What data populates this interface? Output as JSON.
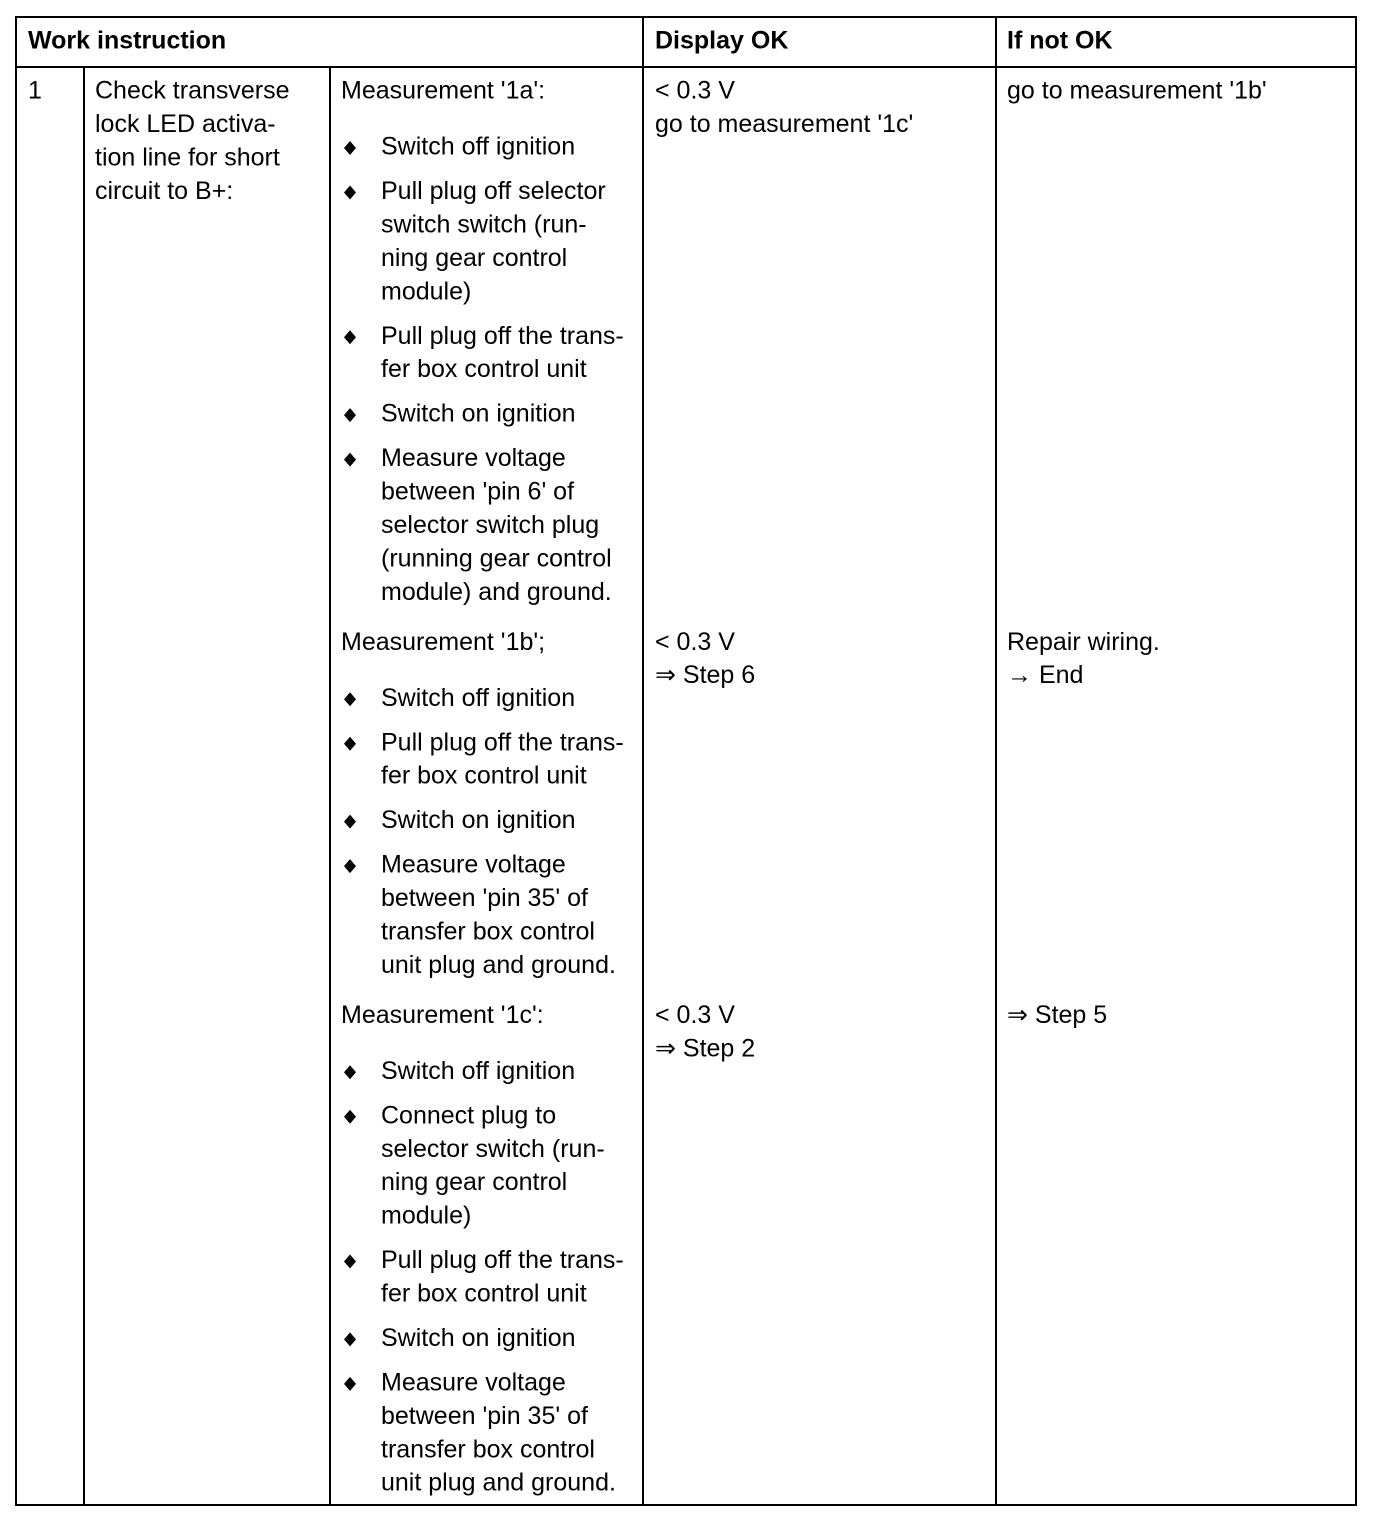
{
  "header": {
    "work_instruction": "Work instruction",
    "display_ok": "Display OK",
    "if_not_ok": "If not OK"
  },
  "step": {
    "number": "1",
    "task": [
      "Check transverse",
      "lock LED activa-",
      "tion line for short",
      "circuit to B+:"
    ]
  },
  "measurements": [
    {
      "title": "Measurement '1a':",
      "bullets": [
        [
          "Switch off ignition"
        ],
        [
          "Pull plug off selector",
          "switch switch (run-",
          "ning gear control",
          "module)"
        ],
        [
          "Pull plug off the trans-",
          "fer box control unit"
        ],
        [
          "Switch on ignition"
        ],
        [
          "Measure voltage",
          "between 'pin 6' of",
          "selector switch plug",
          "(running gear control",
          "module) and ground."
        ]
      ],
      "display_ok": [
        "< 0.3 V",
        "go to measurement '1c'"
      ],
      "if_not_ok": [
        "go to measurement '1b'"
      ]
    },
    {
      "title": "Measurement '1b';",
      "bullets": [
        [
          "Switch off ignition"
        ],
        [
          "Pull plug off the trans-",
          "fer box control unit"
        ],
        [
          "Switch on ignition"
        ],
        [
          "Measure voltage",
          "between 'pin 35' of",
          "transfer box control",
          "unit plug and ground."
        ]
      ],
      "display_ok": [
        "< 0.3 V",
        "⇒ Step 6"
      ],
      "if_not_ok": [
        "Repair wiring.",
        "→ End"
      ]
    },
    {
      "title": "Measurement '1c':",
      "bullets": [
        [
          "Switch off ignition"
        ],
        [
          "Connect plug to",
          "selector switch (run-",
          "ning gear control",
          "module)"
        ],
        [
          "Pull plug off the trans-",
          "fer box control unit"
        ],
        [
          "Switch on ignition"
        ],
        [
          "Measure voltage",
          "between 'pin 35' of",
          "transfer box control",
          "unit plug and ground."
        ]
      ],
      "display_ok": [
        "< 0.3 V",
        "⇒ Step 2"
      ],
      "if_not_ok": [
        "⇒ Step 5"
      ]
    }
  ]
}
